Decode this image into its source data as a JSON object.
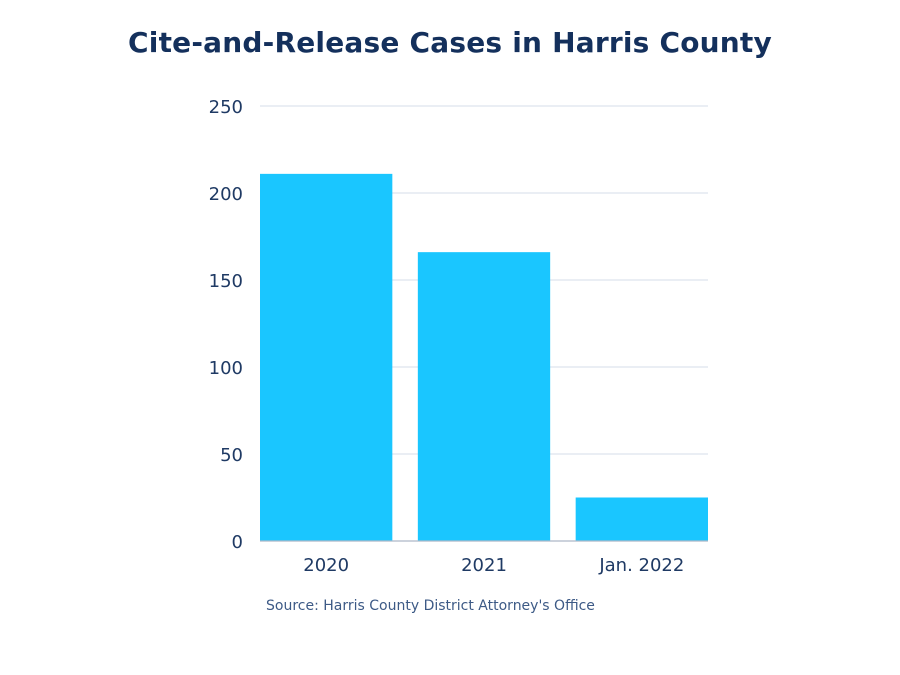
{
  "chart_data": {
    "type": "bar",
    "title": "Cite-and-Release Cases in Harris County",
    "categories": [
      "2020",
      "2021",
      "Jan. 2022"
    ],
    "values": [
      211,
      166,
      25
    ],
    "ylim": [
      0,
      250
    ],
    "yticks": [
      0,
      50,
      100,
      150,
      200,
      250
    ],
    "xlabel": "",
    "ylabel": "",
    "grid": true,
    "source": "Source: Harris County District Attorney's Office",
    "colors": {
      "bar": "#1ac6ff",
      "title": "#14305c",
      "text": "#1f3a64",
      "grid": "#dde3ee",
      "source": "#3d5a86"
    }
  }
}
